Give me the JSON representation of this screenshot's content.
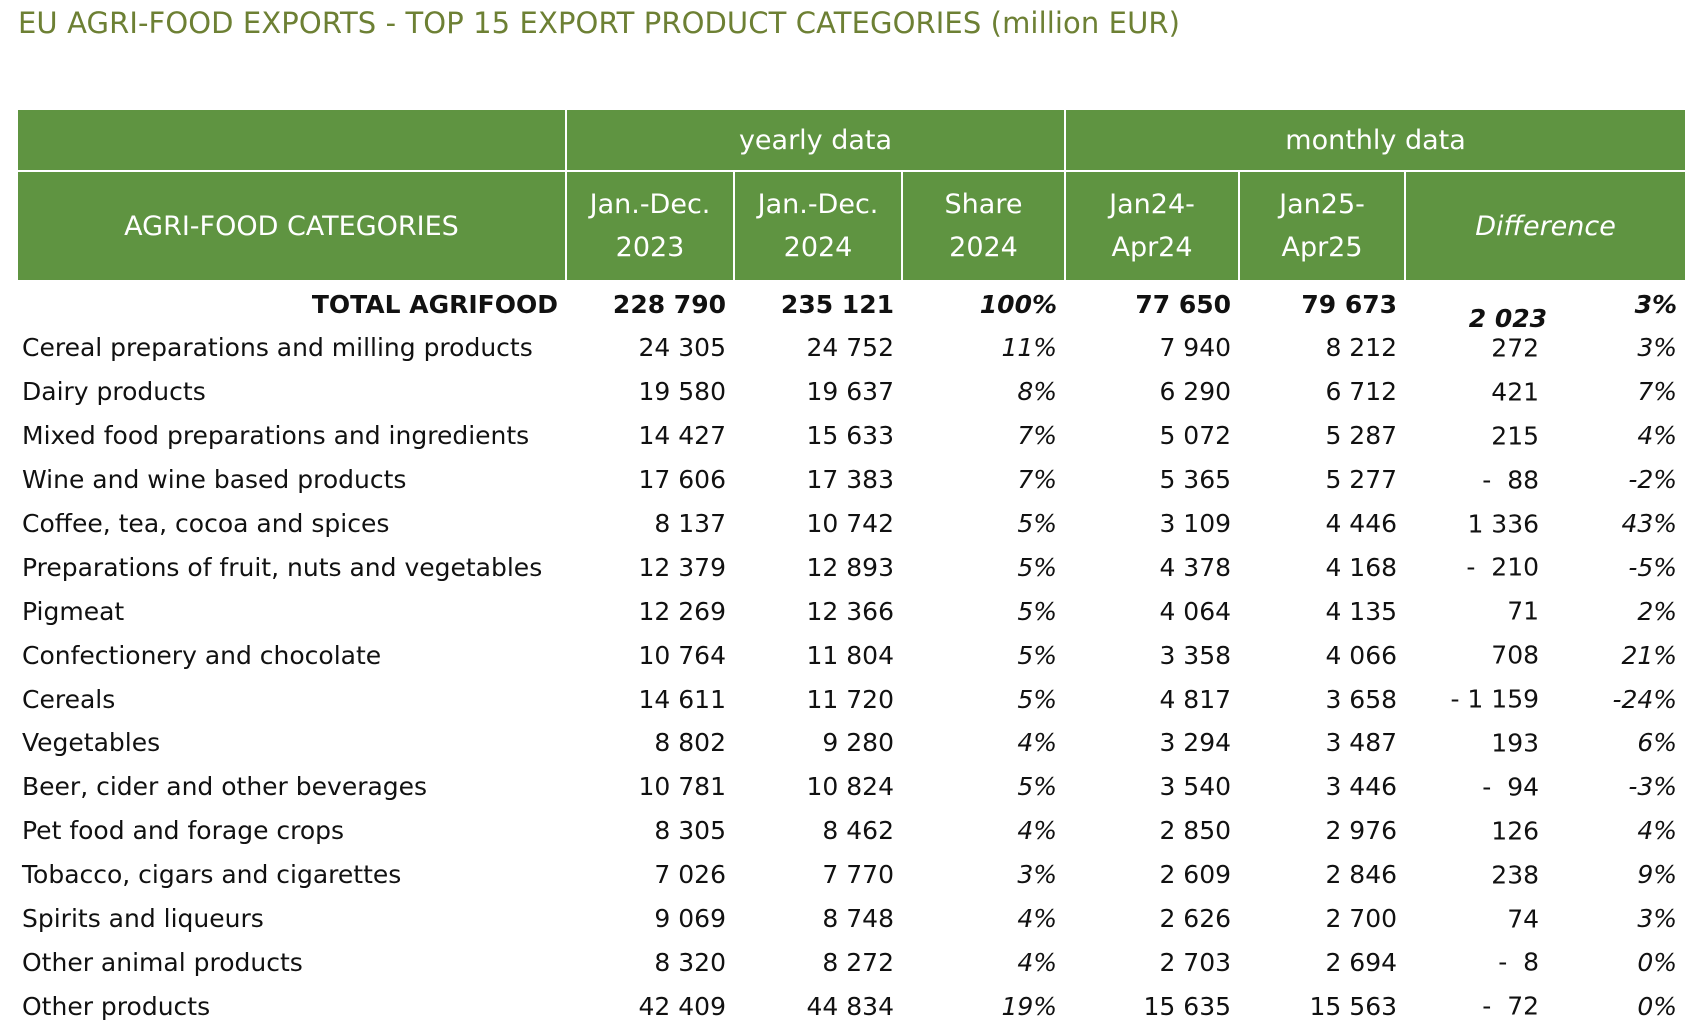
{
  "title": "EU AGRI-FOOD EXPORTS - TOP 15 EXPORT PRODUCT CATEGORIES (million EUR)",
  "header": {
    "group_yearly": "yearly data",
    "group_monthly": "monthly data",
    "categories": "AGRI-FOOD CATEGORIES",
    "col_2023_l1": "Jan.-Dec.",
    "col_2023_l2": "2023",
    "col_2024_l1": "Jan.-Dec.",
    "col_2024_l2": "2024",
    "col_share_l1": "Share",
    "col_share_l2": "2024",
    "col_jan24_l1": "Jan24-",
    "col_jan24_l2": "Apr24",
    "col_jan25_l1": "Jan25-",
    "col_jan25_l2": "Apr25",
    "col_diff": "Difference"
  },
  "total": {
    "category": "TOTAL AGRIFOOD",
    "y2023": "228 790",
    "y2024": "235 121",
    "share": "100%",
    "m24": "77 650",
    "m25": "79 673",
    "diff": "2 023",
    "pct": "3%"
  },
  "rows": [
    {
      "category": "Cereal preparations and milling products",
      "y2023": "24 305",
      "y2024": "24 752",
      "share": "11%",
      "m24": "7 940",
      "m25": "8 212",
      "diff": "272",
      "pct": "3%"
    },
    {
      "category": "Dairy products",
      "y2023": "19 580",
      "y2024": "19 637",
      "share": "8%",
      "m24": "6 290",
      "m25": "6 712",
      "diff": "421",
      "pct": "7%"
    },
    {
      "category": "Mixed food preparations and ingredients",
      "y2023": "14 427",
      "y2024": "15 633",
      "share": "7%",
      "m24": "5 072",
      "m25": "5 287",
      "diff": "215",
      "pct": "4%"
    },
    {
      "category": "Wine and wine based products",
      "y2023": "17 606",
      "y2024": "17 383",
      "share": "7%",
      "m24": "5 365",
      "m25": "5 277",
      "diff": "-  88",
      "pct": "-2%"
    },
    {
      "category": "Coffee, tea, cocoa and spices",
      "y2023": "8 137",
      "y2024": "10 742",
      "share": "5%",
      "m24": "3 109",
      "m25": "4 446",
      "diff": "1 336",
      "pct": "43%"
    },
    {
      "category": "Preparations of fruit, nuts and vegetables",
      "y2023": "12 379",
      "y2024": "12 893",
      "share": "5%",
      "m24": "4 378",
      "m25": "4 168",
      "diff": "-  210",
      "pct": "-5%"
    },
    {
      "category": "Pigmeat",
      "y2023": "12 269",
      "y2024": "12 366",
      "share": "5%",
      "m24": "4 064",
      "m25": "4 135",
      "diff": "71",
      "pct": "2%"
    },
    {
      "category": "Confectionery and chocolate",
      "y2023": "10 764",
      "y2024": "11 804",
      "share": "5%",
      "m24": "3 358",
      "m25": "4 066",
      "diff": "708",
      "pct": "21%"
    },
    {
      "category": "Cereals",
      "y2023": "14 611",
      "y2024": "11 720",
      "share": "5%",
      "m24": "4 817",
      "m25": "3 658",
      "diff": "- 1 159",
      "pct": "-24%"
    },
    {
      "category": "Vegetables",
      "y2023": "8 802",
      "y2024": "9 280",
      "share": "4%",
      "m24": "3 294",
      "m25": "3 487",
      "diff": "193",
      "pct": "6%"
    },
    {
      "category": "Beer, cider and other beverages",
      "y2023": "10 781",
      "y2024": "10 824",
      "share": "5%",
      "m24": "3 540",
      "m25": "3 446",
      "diff": "-  94",
      "pct": "-3%"
    },
    {
      "category": "Pet food and forage crops",
      "y2023": "8 305",
      "y2024": "8 462",
      "share": "4%",
      "m24": "2 850",
      "m25": "2 976",
      "diff": "126",
      "pct": "4%"
    },
    {
      "category": "Tobacco, cigars and cigarettes",
      "y2023": "7 026",
      "y2024": "7 770",
      "share": "3%",
      "m24": "2 609",
      "m25": "2 846",
      "diff": "238",
      "pct": "9%"
    },
    {
      "category": "Spirits and liqueurs",
      "y2023": "9 069",
      "y2024": "8 748",
      "share": "4%",
      "m24": "2 626",
      "m25": "2 700",
      "diff": "74",
      "pct": "3%"
    },
    {
      "category": "Other animal products",
      "y2023": "8 320",
      "y2024": "8 272",
      "share": "4%",
      "m24": "2 703",
      "m25": "2 694",
      "diff": "-  8",
      "pct": "0%"
    },
    {
      "category": "Other products",
      "y2023": "42 409",
      "y2024": "44 834",
      "share": "19%",
      "m24": "15 635",
      "m25": "15 563",
      "diff": "-  72",
      "pct": "0%"
    }
  ],
  "colors": {
    "header_bg": "#5f9441",
    "title_color": "#6d8034"
  }
}
